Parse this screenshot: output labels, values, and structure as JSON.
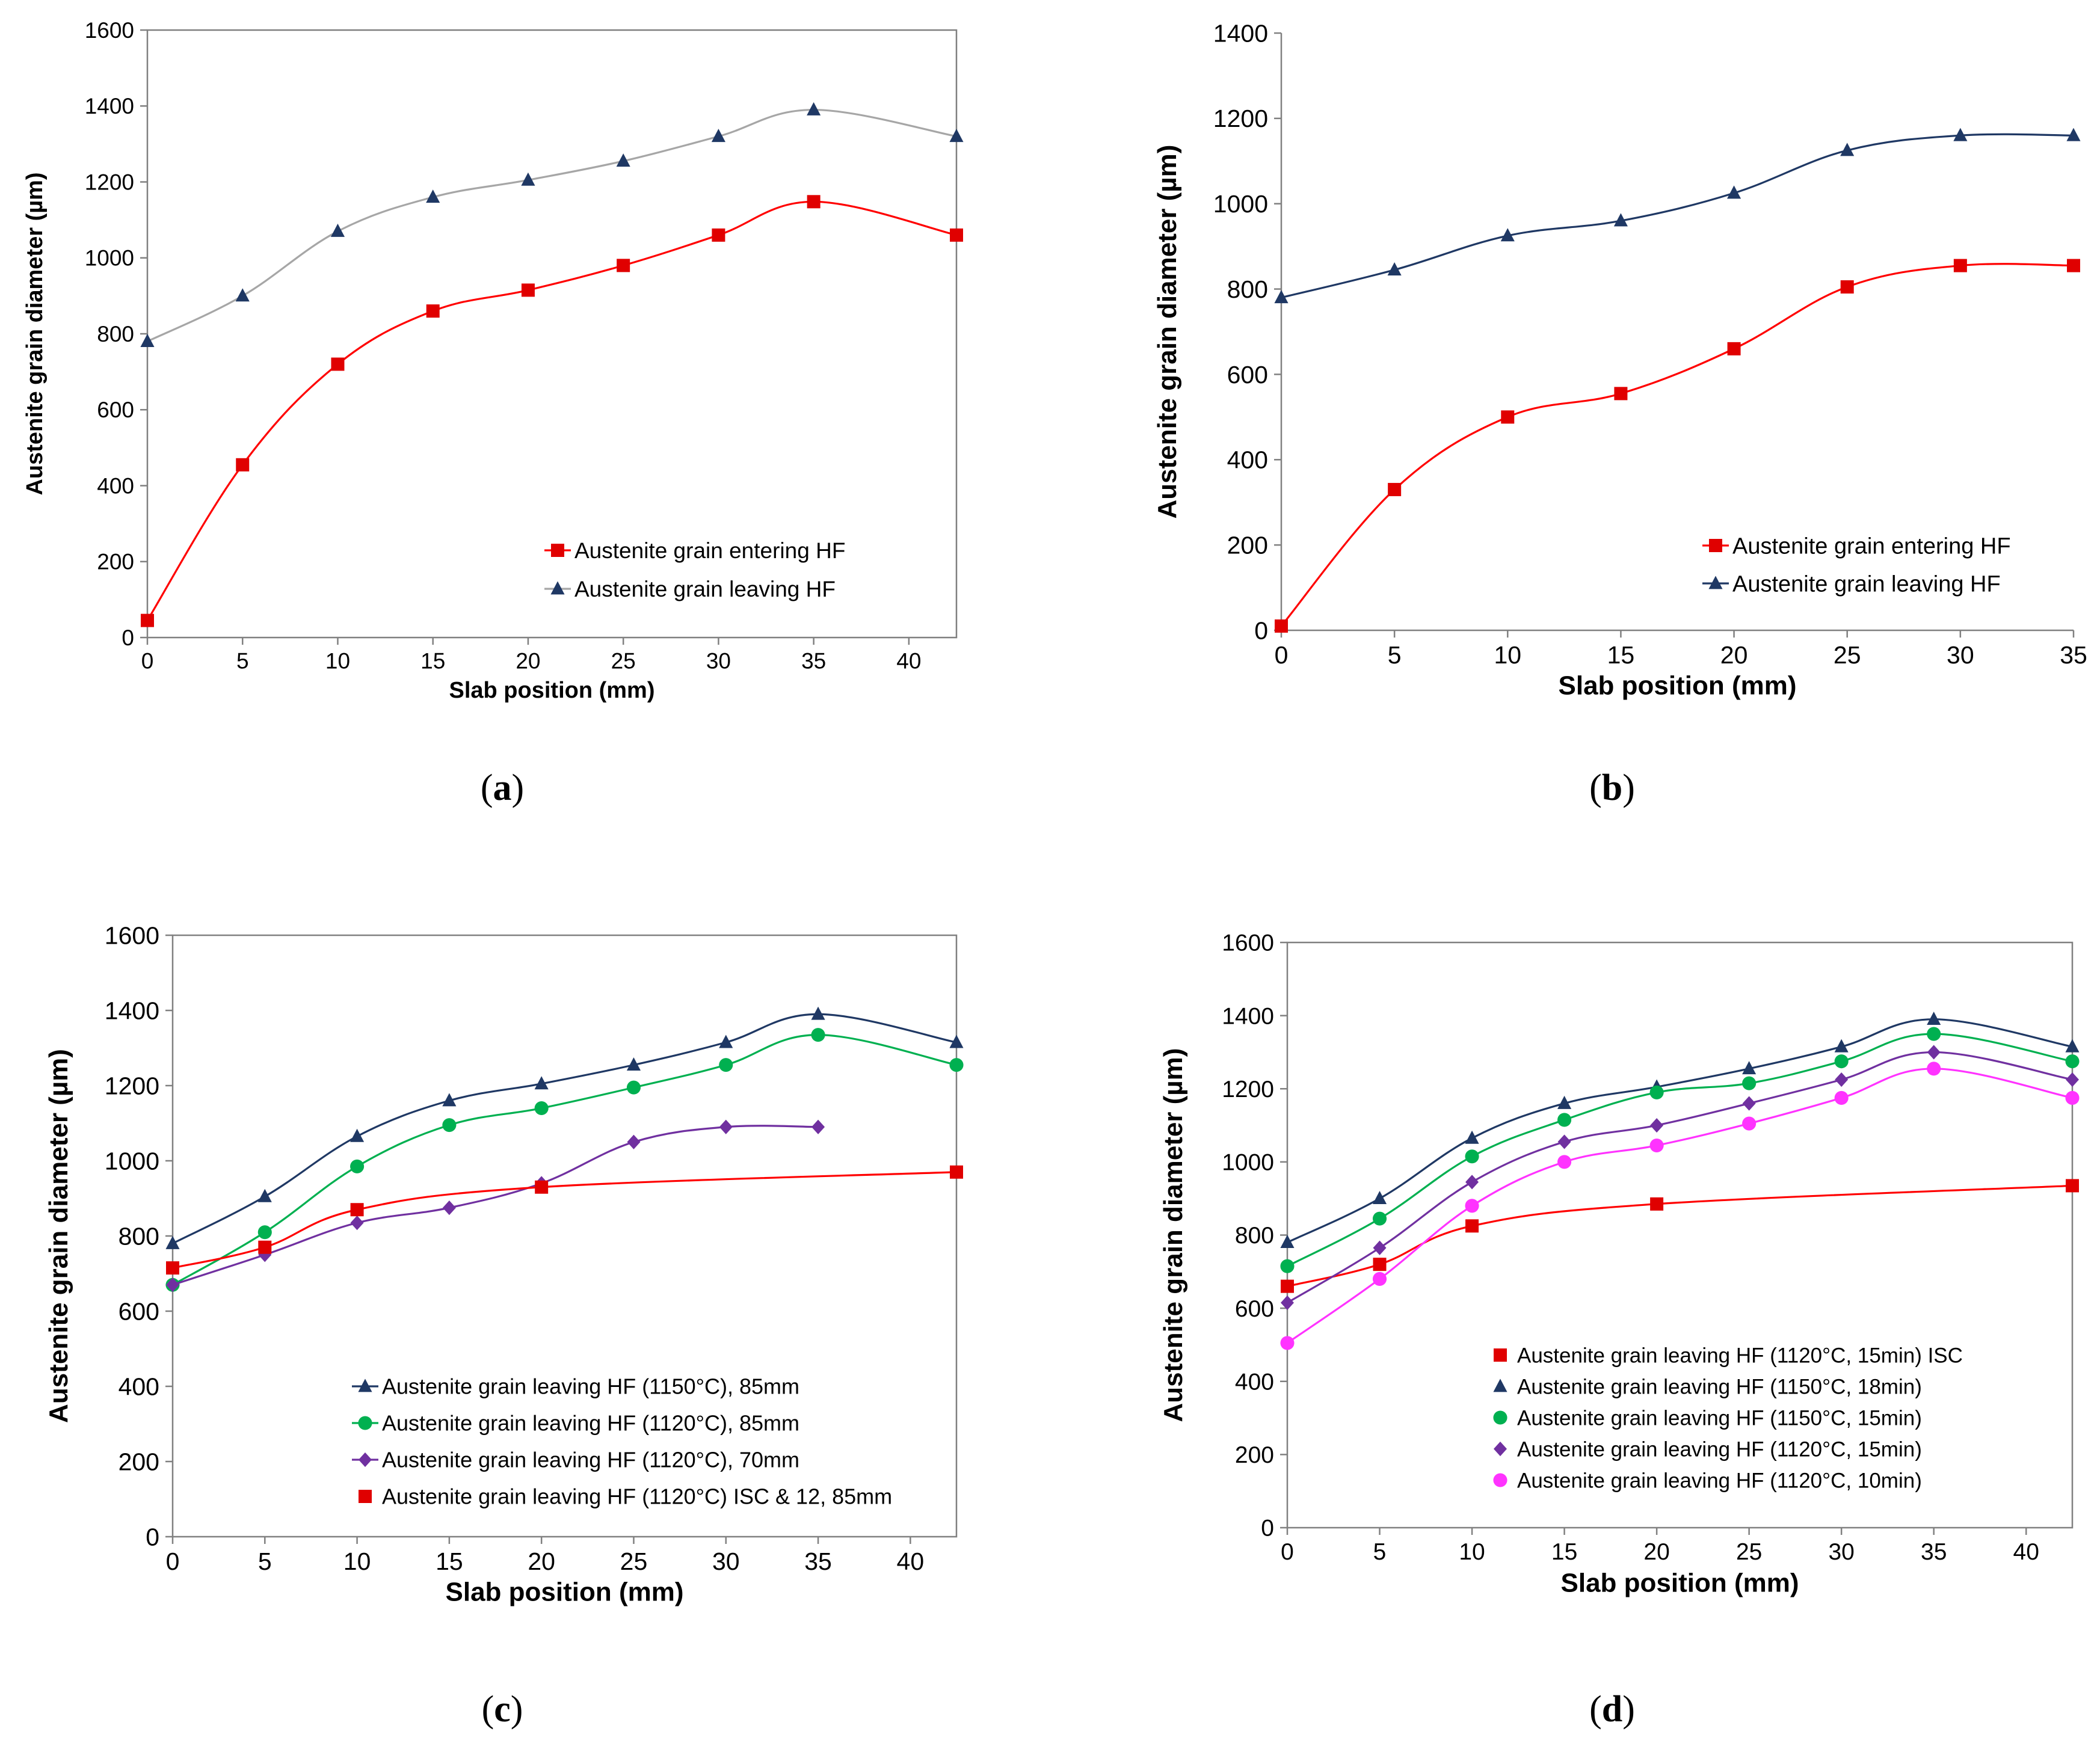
{
  "chart_data": [
    {
      "panel": "a",
      "type": "line",
      "caption": "a",
      "xlabel": "Slab position (mm)",
      "ylabel": "Austenite grain diameter (µm)",
      "xlim": [
        0,
        42.5
      ],
      "ylim": [
        0,
        1600
      ],
      "xticks": [
        0,
        5,
        10,
        15,
        20,
        25,
        30,
        35,
        40
      ],
      "yticks": [
        0,
        200,
        400,
        600,
        800,
        1000,
        1200,
        1400,
        1600
      ],
      "grid": false,
      "legend": "bottom-right",
      "series": [
        {
          "name": "Austenite grain entering HF",
          "color": "#ff0000",
          "marker_color": "#e00000",
          "marker": "square",
          "x": [
            0,
            5,
            10,
            15,
            20,
            25,
            30,
            35,
            42.5
          ],
          "values": [
            45,
            455,
            720,
            860,
            915,
            980,
            1060,
            1148,
            1060
          ]
        },
        {
          "name": "Austenite grain leaving HF",
          "color": "#a6a6a6",
          "marker_color": "#1f3864",
          "marker": "triangle",
          "x": [
            0,
            5,
            10,
            15,
            20,
            25,
            30,
            35,
            42.5
          ],
          "values": [
            780,
            900,
            1070,
            1160,
            1205,
            1255,
            1320,
            1390,
            1320
          ]
        }
      ]
    },
    {
      "panel": "b",
      "type": "line",
      "caption": "b",
      "xlabel": "Slab position (mm)",
      "ylabel": "Austenite grain diameter (µm)",
      "xlim": [
        0,
        35
      ],
      "ylim": [
        0,
        1400
      ],
      "xticks": [
        0,
        5,
        10,
        15,
        20,
        25,
        30,
        35
      ],
      "yticks": [
        0,
        200,
        400,
        600,
        800,
        1000,
        1200,
        1400
      ],
      "grid": false,
      "legend": "bottom-right",
      "series": [
        {
          "name": "Austenite grain entering HF",
          "color": "#ff0000",
          "marker_color": "#e00000",
          "marker": "square",
          "x": [
            0,
            5,
            10,
            15,
            20,
            25,
            30,
            35
          ],
          "values": [
            10,
            330,
            500,
            555,
            660,
            805,
            855,
            855
          ]
        },
        {
          "name": "Austenite grain leaving HF",
          "color": "#1f3864",
          "marker_color": "#1f3864",
          "marker": "triangle",
          "x": [
            0,
            5,
            10,
            15,
            20,
            25,
            30,
            35
          ],
          "values": [
            780,
            845,
            925,
            960,
            1025,
            1125,
            1160,
            1160
          ]
        }
      ]
    },
    {
      "panel": "c",
      "type": "line",
      "caption": "c",
      "xlabel": "Slab position (mm)",
      "ylabel": "Austenite grain diameter (µm)",
      "xlim": [
        0,
        42.5
      ],
      "ylim": [
        0,
        1600
      ],
      "xticks": [
        0,
        5,
        10,
        15,
        20,
        25,
        30,
        35,
        40
      ],
      "yticks": [
        0,
        200,
        400,
        600,
        800,
        1000,
        1200,
        1400,
        1600
      ],
      "grid": false,
      "legend": "bottom-right",
      "series": [
        {
          "name": "Austenite grain leaving HF (1150°C), 85mm",
          "color": "#1f3864",
          "marker_color": "#1f3864",
          "marker": "triangle",
          "x": [
            0,
            5,
            10,
            15,
            20,
            25,
            30,
            35,
            42.5
          ],
          "values": [
            780,
            905,
            1065,
            1160,
            1205,
            1255,
            1315,
            1390,
            1315
          ]
        },
        {
          "name": "Austenite grain leaving HF (1120°C), 85mm",
          "color": "#00b050",
          "marker_color": "#00b050",
          "marker": "circle",
          "x": [
            0,
            5,
            10,
            15,
            20,
            25,
            30,
            35,
            42.5
          ],
          "values": [
            670,
            810,
            985,
            1095,
            1140,
            1195,
            1255,
            1335,
            1255
          ]
        },
        {
          "name": "Austenite grain leaving HF (1120°C), 70mm",
          "color": "#7030a0",
          "marker_color": "#7030a0",
          "marker": "diamond",
          "x": [
            0,
            5,
            10,
            15,
            20,
            25,
            30,
            35
          ],
          "values": [
            670,
            750,
            835,
            875,
            940,
            1050,
            1090,
            1090
          ]
        },
        {
          "name": "Austenite grain leaving HF (1120°C) ISC & 12, 85mm",
          "color": "#ff0000",
          "marker_color": "#e00000",
          "marker": "square",
          "x": [
            0,
            5,
            10,
            20,
            42.5
          ],
          "values": [
            715,
            770,
            870,
            930,
            970
          ]
        }
      ]
    },
    {
      "panel": "d",
      "type": "line",
      "caption": "d",
      "xlabel": "Slab position (mm)",
      "ylabel": "Austenite grain diameter (µm)",
      "xlim": [
        0,
        42.5
      ],
      "ylim": [
        0,
        1600
      ],
      "xticks": [
        0,
        5,
        10,
        15,
        20,
        25,
        30,
        35,
        40
      ],
      "yticks": [
        0,
        200,
        400,
        600,
        800,
        1000,
        1200,
        1400,
        1600
      ],
      "grid": false,
      "legend": "bottom-right",
      "series": [
        {
          "name": "Austenite grain leaving HF (1120°C, 15min) ISC",
          "color": "#ff0000",
          "marker_color": "#e00000",
          "marker": "square",
          "x": [
            0,
            5,
            10,
            20,
            42.5
          ],
          "values": [
            660,
            720,
            825,
            885,
            935
          ]
        },
        {
          "name": "Austenite grain leaving HF (1150°C, 18min)",
          "color": "#1f3864",
          "marker_color": "#1f3864",
          "marker": "triangle",
          "x": [
            0,
            5,
            10,
            15,
            20,
            25,
            30,
            35,
            42.5
          ],
          "values": [
            780,
            900,
            1065,
            1160,
            1205,
            1255,
            1315,
            1390,
            1315
          ]
        },
        {
          "name": "Austenite grain leaving HF (1150°C, 15min)",
          "color": "#00b050",
          "marker_color": "#00b050",
          "marker": "circle",
          "x": [
            0,
            5,
            10,
            15,
            20,
            25,
            30,
            35,
            42.5
          ],
          "values": [
            715,
            845,
            1015,
            1115,
            1190,
            1215,
            1275,
            1350,
            1275
          ]
        },
        {
          "name": "Austenite grain leaving HF (1120°C, 15min)",
          "color": "#7030a0",
          "marker_color": "#7030a0",
          "marker": "diamond",
          "x": [
            0,
            5,
            10,
            15,
            20,
            25,
            30,
            35,
            42.5
          ],
          "values": [
            615,
            765,
            945,
            1055,
            1100,
            1160,
            1225,
            1300,
            1225
          ]
        },
        {
          "name": "Austenite grain leaving HF (1120°C, 10min)",
          "color": "#ff33ff",
          "marker_color": "#ff33ff",
          "marker": "circle",
          "x": [
            0,
            5,
            10,
            15,
            20,
            25,
            30,
            35,
            42.5
          ],
          "values": [
            505,
            680,
            880,
            1000,
            1045,
            1105,
            1175,
            1255,
            1175
          ]
        }
      ]
    }
  ]
}
